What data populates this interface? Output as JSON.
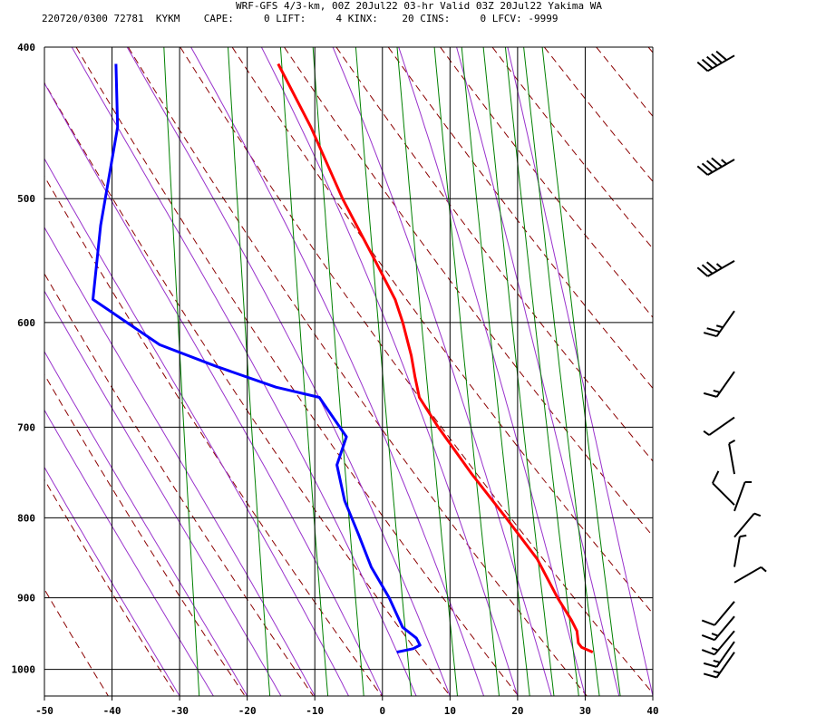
{
  "header": {
    "line1": "WRF-GFS 4/3-km, 00Z 20Jul22 03-hr Valid 03Z 20Jul22 Yakima WA",
    "line2": "220720/0300 72781  KYKM    CAPE:     0 LIFT:     4 KINX:    20 CINS:     0 LFCV: -9999"
  },
  "colors": {
    "temperature": "#ff0000",
    "dewpoint": "#0000ff",
    "dry_adiabat": "#8b0000",
    "moist_adiabat": "#9932cc",
    "mixing_ratio": "#008000",
    "grid": "#000000"
  },
  "chart_data": {
    "type": "line",
    "subtype": "skew-t log-p sounding",
    "x_ticks": [
      -50,
      -40,
      -30,
      -20,
      -10,
      0,
      10,
      20,
      30,
      40
    ],
    "x_tick_labels": [
      "-50",
      "-40",
      "-30",
      "-20",
      "-10",
      "0",
      "10",
      "20",
      "30",
      "40"
    ],
    "y_ticks": [
      400,
      500,
      600,
      700,
      800,
      900,
      1000
    ],
    "y_tick_labels": [
      "400",
      "500",
      "600",
      "700",
      "800",
      "900",
      "1000"
    ],
    "xlim": [
      -50,
      40
    ],
    "ylim": [
      1040,
      400
    ],
    "y_scale": "log, inverted",
    "skew": "isotherms slanted (skew-T)",
    "grid": true,
    "series": [
      {
        "role": "temperature",
        "points": [
          {
            "p": 410,
            "t": -20.0
          },
          {
            "p": 450,
            "t": -14.7
          },
          {
            "p": 500,
            "t": -9.5
          },
          {
            "p": 550,
            "t": -4.0
          },
          {
            "p": 580,
            "t": -1.0
          },
          {
            "p": 600,
            "t": 0.3
          },
          {
            "p": 630,
            "t": 1.8
          },
          {
            "p": 650,
            "t": 2.5
          },
          {
            "p": 670,
            "t": 3.3
          },
          {
            "p": 700,
            "t": 6.3
          },
          {
            "p": 750,
            "t": 11.6
          },
          {
            "p": 800,
            "t": 17.0
          },
          {
            "p": 850,
            "t": 21.9
          },
          {
            "p": 900,
            "t": 25.2
          },
          {
            "p": 930,
            "t": 27.4
          },
          {
            "p": 945,
            "t": 28.3
          },
          {
            "p": 962,
            "t": 28.6
          },
          {
            "p": 968,
            "t": 29.1
          },
          {
            "p": 975,
            "t": 30.8
          }
        ]
      },
      {
        "role": "dewpoint",
        "points": [
          {
            "p": 410,
            "t": -44.0
          },
          {
            "p": 450,
            "t": -43.3
          },
          {
            "p": 480,
            "t": -44.1
          },
          {
            "p": 520,
            "t": -45.1
          },
          {
            "p": 580,
            "t": -45.7
          },
          {
            "p": 620,
            "t": -35.5
          },
          {
            "p": 640,
            "t": -27.0
          },
          {
            "p": 660,
            "t": -18.0
          },
          {
            "p": 670,
            "t": -11.5
          },
          {
            "p": 710,
            "t": -7.2
          },
          {
            "p": 740,
            "t": -8.4
          },
          {
            "p": 780,
            "t": -7.0
          },
          {
            "p": 820,
            "t": -4.7
          },
          {
            "p": 860,
            "t": -2.6
          },
          {
            "p": 900,
            "t": 0.3
          },
          {
            "p": 940,
            "t": 2.5
          },
          {
            "p": 955,
            "t": 4.6
          },
          {
            "p": 965,
            "t": 5.2
          },
          {
            "p": 970,
            "t": 4.2
          },
          {
            "p": 975,
            "t": 1.8
          }
        ]
      }
    ],
    "wind_barbs": [
      {
        "p": 405,
        "dir": 240,
        "speed_kt": 50
      },
      {
        "p": 472,
        "dir": 240,
        "speed_kt": 45
      },
      {
        "p": 548,
        "dir": 240,
        "speed_kt": 35
      },
      {
        "p": 590,
        "dir": 215,
        "speed_kt": 25
      },
      {
        "p": 645,
        "dir": 215,
        "speed_kt": 15
      },
      {
        "p": 690,
        "dir": 235,
        "speed_kt": 5
      },
      {
        "p": 750,
        "dir": 350,
        "speed_kt": 5
      },
      {
        "p": 785,
        "dir": 315,
        "speed_kt": 10
      },
      {
        "p": 792,
        "dir": 20,
        "speed_kt": 5
      },
      {
        "p": 823,
        "dir": 40,
        "speed_kt": 5
      },
      {
        "p": 860,
        "dir": 10,
        "speed_kt": 5
      },
      {
        "p": 880,
        "dir": 60,
        "speed_kt": 5
      },
      {
        "p": 905,
        "dir": 220,
        "speed_kt": 10
      },
      {
        "p": 925,
        "dir": 220,
        "speed_kt": 15
      },
      {
        "p": 945,
        "dir": 220,
        "speed_kt": 15
      },
      {
        "p": 960,
        "dir": 215,
        "speed_kt": 15
      },
      {
        "p": 975,
        "dir": 215,
        "speed_kt": 15
      }
    ]
  }
}
